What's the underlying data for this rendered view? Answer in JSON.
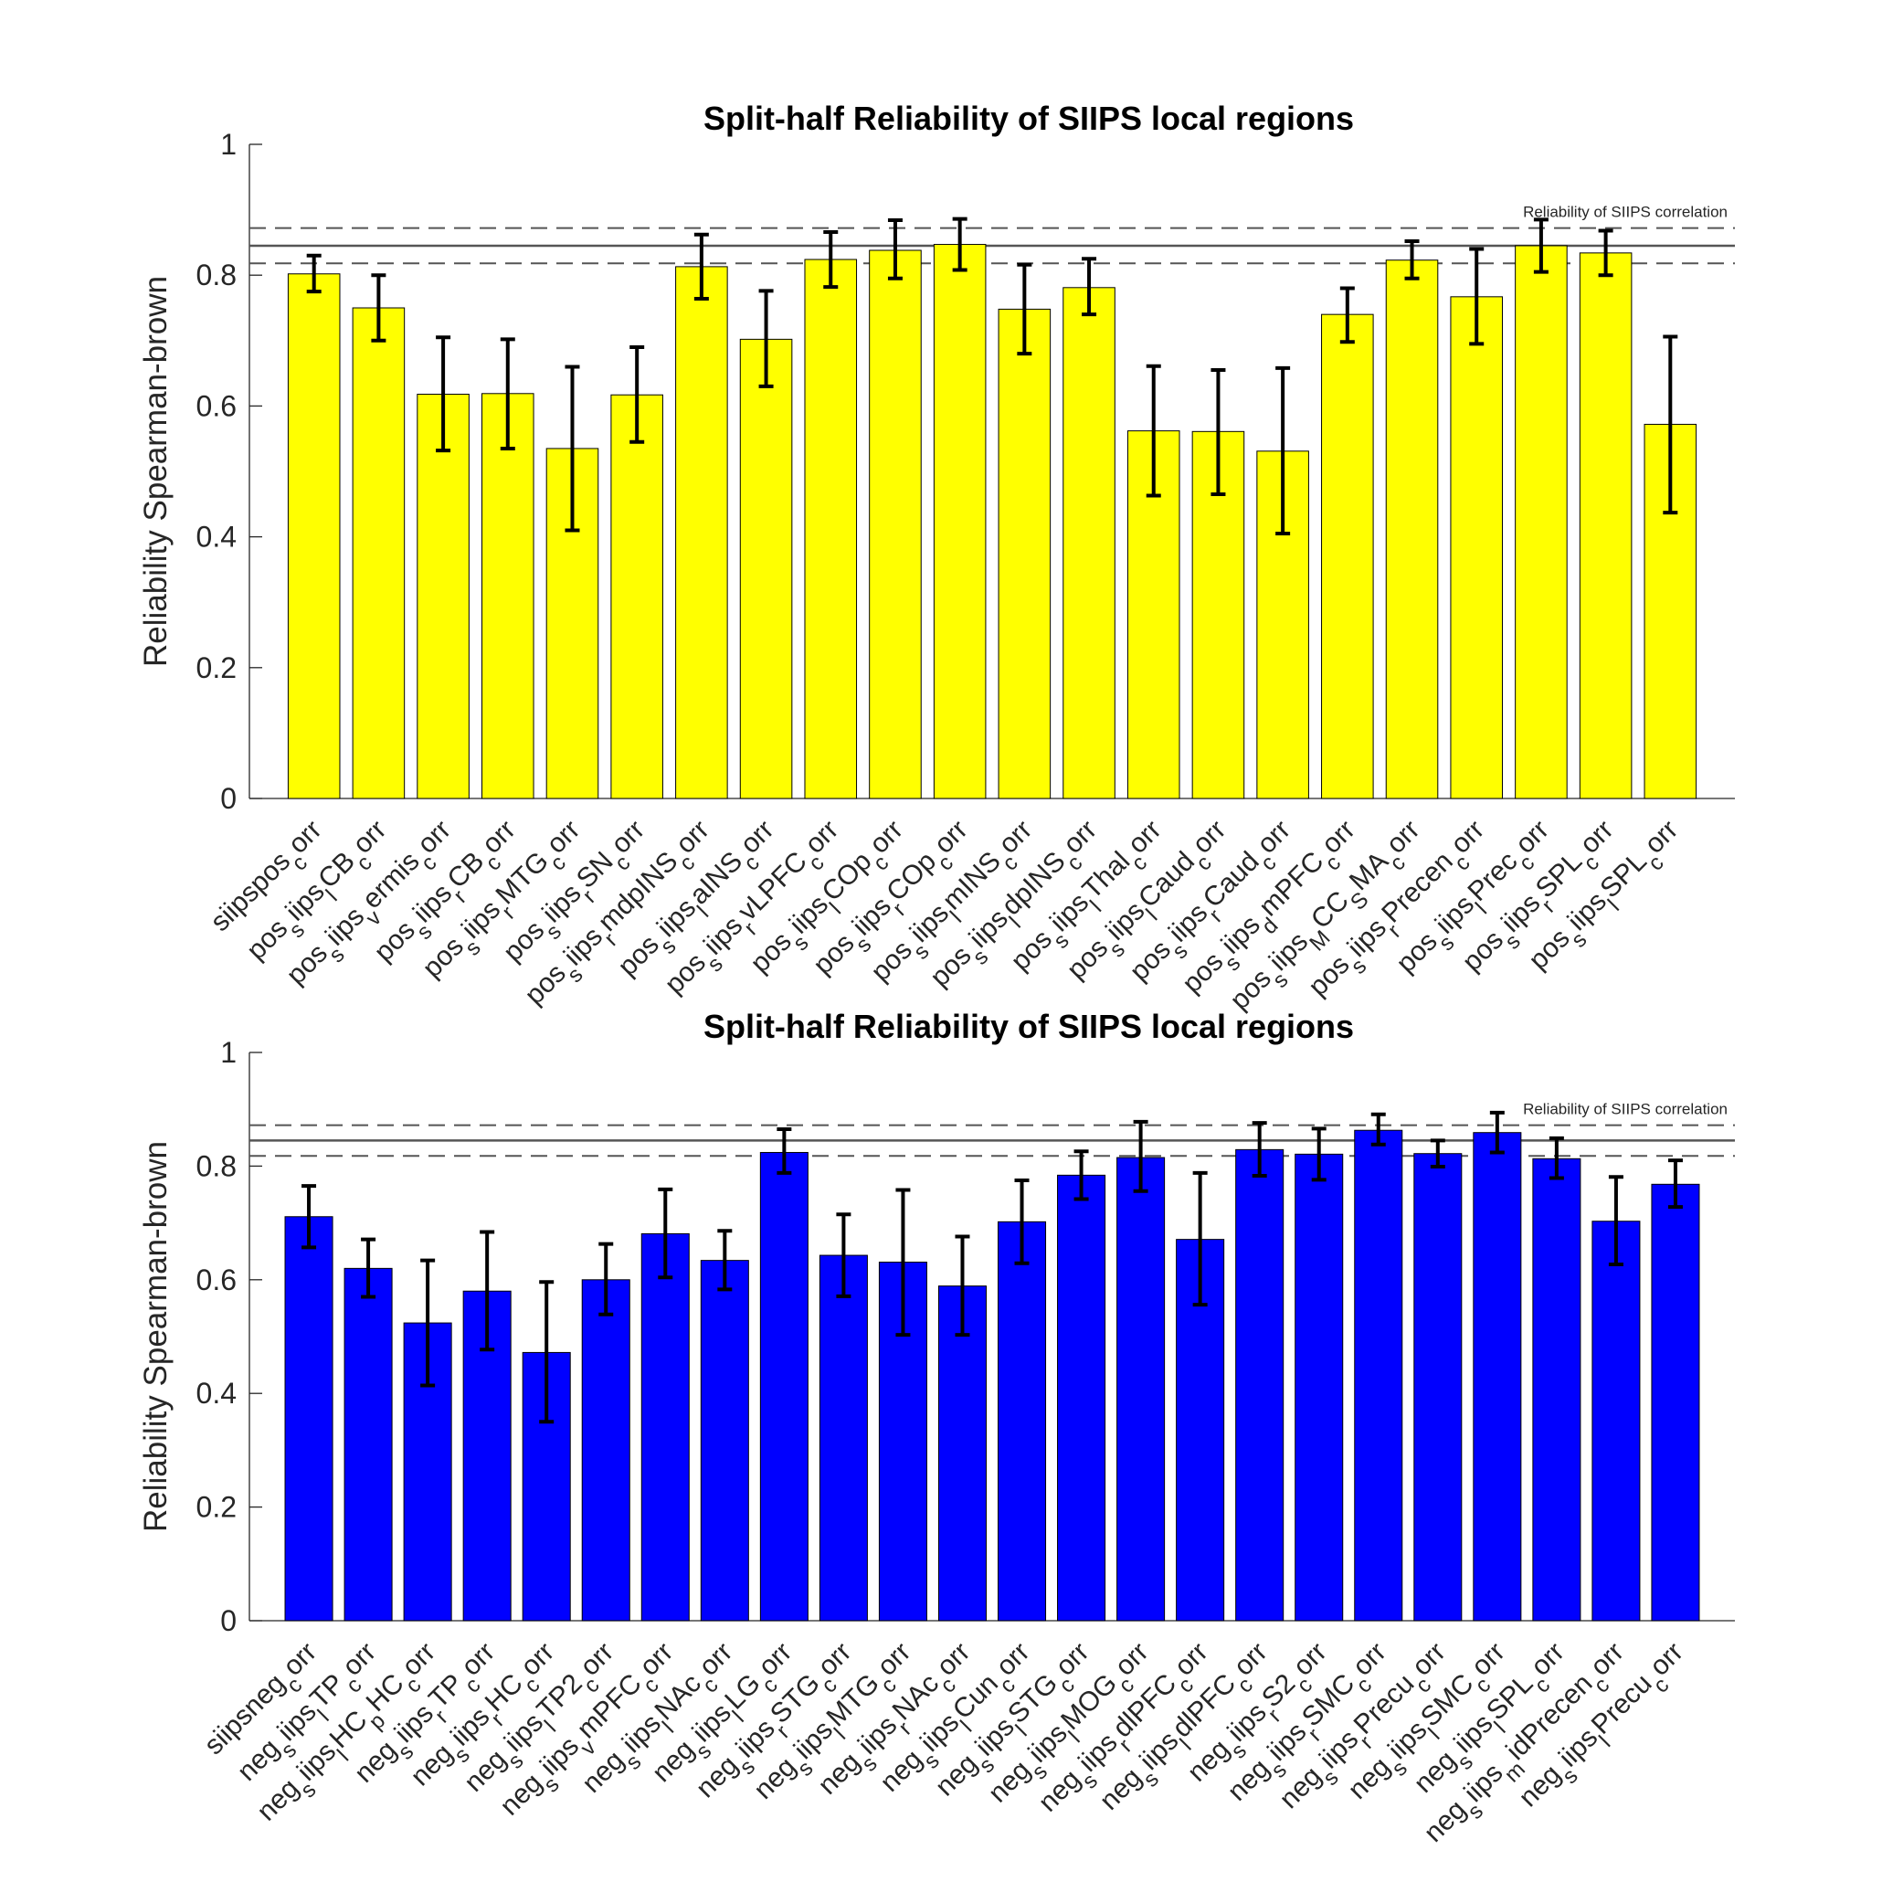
{
  "chart_data": [
    {
      "type": "bar",
      "title": "Split-half Reliability of SIIPS local regions",
      "ylabel": "Reliability Spearman-brown",
      "xlabel": "",
      "ylim": [
        0,
        1
      ],
      "yticks": [
        0,
        0.2,
        0.4,
        0.6,
        0.8,
        1
      ],
      "bar_color": "#FFFF00",
      "error_color": "#000000",
      "grid": false,
      "reference": {
        "label": "Reliability of SIIPS correlation",
        "value": 0.845,
        "lower": 0.818,
        "upper": 0.872
      },
      "categories": [
        "siipspos_corr",
        "pos_siips_lCB_corr",
        "pos_siips_vermis_corr",
        "pos_siips_rCB_corr",
        "pos_siips_rMTG_corr",
        "pos_siips_rSN_corr",
        "pos_siips_rmdpINS_corr",
        "pos_siips_lalNS_corr",
        "pos_siips_rvLPFC_corr",
        "pos_siips_lCOp_corr",
        "pos_siips_rCOp_corr",
        "pos_siips_lmINS_corr",
        "pos_siips_ldpINS_corr",
        "pos_siips_lThal_corr",
        "pos_siips_lCaud_corr",
        "pos_siips_rCaud_corr",
        "pos_siips_dmPFC_corr",
        "pos_siips_MCC_SMA_corr",
        "pos_siips_rPrecen_corr",
        "pos_siips_lPrec_corr",
        "pos_siips_rSPL_corr",
        "pos_siips_lSPL_corr"
      ],
      "values": [
        0.802,
        0.75,
        0.618,
        0.619,
        0.535,
        0.617,
        0.813,
        0.702,
        0.824,
        0.838,
        0.847,
        0.748,
        0.781,
        0.562,
        0.561,
        0.531,
        0.74,
        0.823,
        0.767,
        0.845,
        0.834,
        0.572
      ],
      "err_low": [
        0.775,
        0.7,
        0.532,
        0.535,
        0.41,
        0.545,
        0.764,
        0.63,
        0.782,
        0.795,
        0.808,
        0.68,
        0.74,
        0.463,
        0.465,
        0.405,
        0.698,
        0.795,
        0.695,
        0.805,
        0.8,
        0.437
      ],
      "err_high": [
        0.83,
        0.8,
        0.705,
        0.702,
        0.66,
        0.69,
        0.862,
        0.776,
        0.866,
        0.884,
        0.886,
        0.816,
        0.825,
        0.661,
        0.655,
        0.658,
        0.78,
        0.852,
        0.84,
        0.885,
        0.868,
        0.706
      ],
      "label_main": [
        "siipspos",
        "pos",
        "pos",
        "pos",
        "pos",
        "pos",
        "pos",
        "pos",
        "pos",
        "pos",
        "pos",
        "pos",
        "pos",
        "pos",
        "pos",
        "pos",
        "pos",
        "pos",
        "pos",
        "pos",
        "pos",
        "pos"
      ],
      "label_sub1": [
        "",
        "s",
        "s",
        "s",
        "s",
        "s",
        "s",
        "s",
        "s",
        "s",
        "s",
        "s",
        "s",
        "s",
        "s",
        "s",
        "s",
        "s",
        "s",
        "s",
        "s",
        "s"
      ],
      "label_mid": [
        "",
        "iips",
        "iips",
        "iips",
        "iips",
        "iips",
        "iips",
        "iips",
        "iips",
        "iips",
        "iips",
        "iips",
        "iips",
        "iips",
        "iips",
        "iips",
        "iips",
        "iips",
        "iips",
        "iips",
        "iips",
        "iips"
      ],
      "label_sub2": [
        "",
        "l",
        "v",
        "r",
        "r",
        "r",
        "r",
        "l",
        "r",
        "l",
        "r",
        "l",
        "l",
        "l",
        "l",
        "r",
        "d",
        "M",
        "r",
        "l",
        "r",
        "l"
      ],
      "label_end": [
        "",
        "CB",
        "ermis",
        "CB",
        "MTG",
        "SN",
        "mdpINS",
        "aINS",
        "vLPFC",
        "COp",
        "COp",
        "mINS",
        "dpINS",
        "Thal",
        "Caud",
        "Caud",
        "mPFC",
        "CC",
        "Precen",
        "Prec",
        "SPL",
        "SPL"
      ],
      "label_sub3": [
        "c",
        "c",
        "c",
        "c",
        "c",
        "c",
        "c",
        "c",
        "c",
        "c",
        "c",
        "c",
        "c",
        "c",
        "c",
        "c",
        "c",
        "S",
        "c",
        "c",
        "c",
        "c"
      ],
      "label_tail": [
        "orr",
        "orr",
        "orr",
        "orr",
        "orr",
        "orr",
        "orr",
        "orr",
        "orr",
        "orr",
        "orr",
        "orr",
        "orr",
        "orr",
        "orr",
        "orr",
        "orr",
        "MA",
        "orr",
        "orr",
        "orr",
        "orr"
      ],
      "label_sub4": [
        "",
        "",
        "",
        "",
        "",
        "",
        "",
        "",
        "",
        "",
        "",
        "",
        "",
        "",
        "",
        "",
        "",
        "c",
        "",
        "",
        "",
        ""
      ],
      "label_tail2": [
        "",
        "",
        "",
        "",
        "",
        "",
        "",
        "",
        "",
        "",
        "",
        "",
        "",
        "",
        "",
        "",
        "",
        "orr",
        "",
        "",
        "",
        ""
      ]
    },
    {
      "type": "bar",
      "title": "Split-half Reliability of SIIPS local regions",
      "ylabel": "Reliability Spearman-brown",
      "xlabel": "",
      "ylim": [
        0,
        1
      ],
      "yticks": [
        0,
        0.2,
        0.4,
        0.6,
        0.8,
        1
      ],
      "bar_color": "#0000FF",
      "error_color": "#000000",
      "grid": false,
      "reference": {
        "label": "Reliability of SIIPS correlation",
        "value": 0.845,
        "lower": 0.818,
        "upper": 0.872
      },
      "categories": [
        "siipsneg_corr",
        "neg_siips_lTP_corr",
        "neg_siips_lHC_pHC_corr",
        "neg_siips_rTP_corr",
        "neg_siips_rHC_corr",
        "neg_siips_lTP2_corr",
        "neg_siips_vmPFC_corr",
        "neg_siips_lNAc_corr",
        "neg_siips_lLG_corr",
        "neg_siips_rSTG_corr",
        "neg_siips_lMTG_corr",
        "neg_siips_rNAc_corr",
        "neg_siips_lCun_corr",
        "neg_siips_lSTG_corr",
        "neg_siips_lMOG_corr",
        "neg_siips_rdlPFC_corr",
        "neg_siips_ldlPFC_corr",
        "neg_siips_rS2_corr",
        "neg_siips_rSMC_corr",
        "neg_siips_rPrecu_corr",
        "neg_siips_lSMC_corr",
        "neg_siips_lSPL_corr",
        "neg_siips_midPrecen_corr",
        "neg_siips_lPrecu_corr"
      ],
      "values": [
        0.711,
        0.62,
        0.524,
        0.58,
        0.472,
        0.6,
        0.681,
        0.634,
        0.824,
        0.643,
        0.631,
        0.589,
        0.702,
        0.784,
        0.815,
        0.671,
        0.829,
        0.821,
        0.863,
        0.822,
        0.859,
        0.813,
        0.703,
        0.768
      ],
      "err_low": [
        0.657,
        0.57,
        0.414,
        0.477,
        0.35,
        0.539,
        0.604,
        0.583,
        0.788,
        0.571,
        0.503,
        0.503,
        0.629,
        0.742,
        0.756,
        0.556,
        0.783,
        0.776,
        0.838,
        0.799,
        0.824,
        0.779,
        0.627,
        0.728
      ],
      "err_high": [
        0.765,
        0.671,
        0.634,
        0.684,
        0.596,
        0.663,
        0.759,
        0.686,
        0.865,
        0.715,
        0.758,
        0.676,
        0.775,
        0.826,
        0.878,
        0.788,
        0.876,
        0.866,
        0.891,
        0.845,
        0.894,
        0.849,
        0.781,
        0.81
      ],
      "label_main": [
        "siipsneg",
        "neg",
        "neg",
        "neg",
        "neg",
        "neg",
        "neg",
        "neg",
        "neg",
        "neg",
        "neg",
        "neg",
        "neg",
        "neg",
        "neg",
        "neg",
        "neg",
        "neg",
        "neg",
        "neg",
        "neg",
        "neg",
        "neg",
        "neg"
      ],
      "label_sub1": [
        "",
        "s",
        "s",
        "s",
        "s",
        "s",
        "s",
        "s",
        "s",
        "s",
        "s",
        "s",
        "s",
        "s",
        "s",
        "s",
        "s",
        "s",
        "s",
        "s",
        "s",
        "s",
        "s",
        "s"
      ],
      "label_mid": [
        "",
        "iips",
        "iips",
        "iips",
        "iips",
        "iips",
        "iips",
        "iips",
        "iips",
        "iips",
        "iips",
        "iips",
        "iips",
        "iips",
        "iips",
        "iips",
        "iips",
        "iips",
        "iips",
        "iips",
        "iips",
        "iips",
        "iips",
        "iips"
      ],
      "label_sub2": [
        "",
        "l",
        "l",
        "r",
        "r",
        "l",
        "v",
        "l",
        "l",
        "r",
        "l",
        "r",
        "l",
        "l",
        "l",
        "r",
        "l",
        "r",
        "r",
        "r",
        "l",
        "l",
        "m",
        "l"
      ],
      "label_end": [
        "",
        "TP",
        "HC",
        "TP",
        "HC",
        "TP2",
        "mPFC",
        "NAc",
        "LG",
        "STG",
        "MTG",
        "NAc",
        "Cun",
        "STG",
        "MOG",
        "dlPFC",
        "dlPFC",
        "S2",
        "SMC",
        "Precu",
        "SMC",
        "SPL",
        "idPrecen",
        "Precu"
      ],
      "label_sub3": [
        "c",
        "c",
        "p",
        "c",
        "c",
        "c",
        "c",
        "c",
        "c",
        "c",
        "c",
        "c",
        "c",
        "c",
        "c",
        "c",
        "c",
        "c",
        "c",
        "c",
        "c",
        "c",
        "c",
        "c"
      ],
      "label_tail": [
        "orr",
        "orr",
        "HC",
        "orr",
        "orr",
        "orr",
        "orr",
        "orr",
        "orr",
        "orr",
        "orr",
        "orr",
        "orr",
        "orr",
        "orr",
        "orr",
        "orr",
        "orr",
        "orr",
        "orr",
        "orr",
        "orr",
        "orr",
        "orr"
      ],
      "label_sub4": [
        "",
        "",
        "c",
        "",
        "",
        "",
        "",
        "",
        "",
        "",
        "",
        "",
        "",
        "",
        "",
        "",
        "",
        "",
        "",
        "",
        "",
        "",
        "",
        ""
      ],
      "label_tail2": [
        "",
        "",
        "orr",
        "",
        "",
        "",
        "",
        "",
        "",
        "",
        "",
        "",
        "",
        "",
        "",
        "",
        "",
        "",
        "",
        "",
        "",
        "",
        "",
        ""
      ]
    }
  ]
}
